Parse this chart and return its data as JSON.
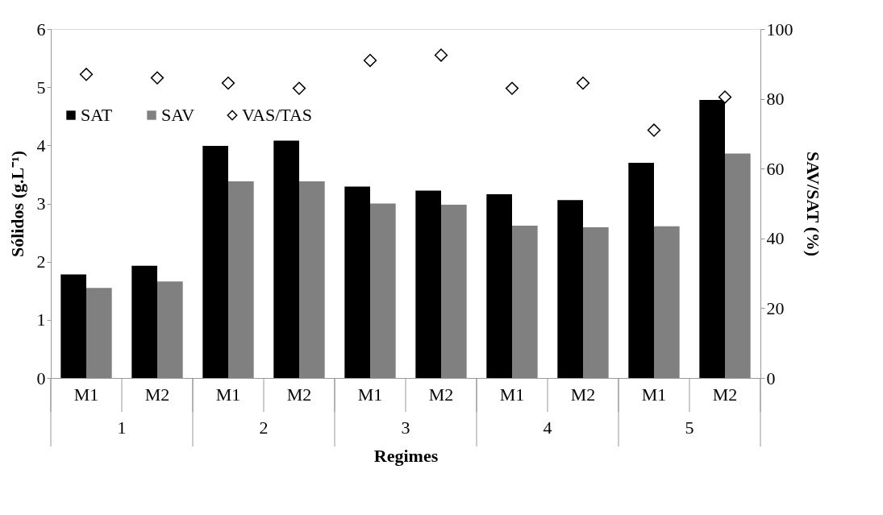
{
  "chart_data": {
    "type": "bar",
    "xlabel": "Regimes",
    "ylabel": "Sólidos (g.L⁻¹)",
    "y2label": "SAV/SAT (%)",
    "categories": [
      "M1",
      "M2",
      "M1",
      "M2",
      "M1",
      "M2",
      "M1",
      "M2",
      "M1",
      "M2"
    ],
    "annotations": [
      "1",
      "2",
      "3",
      "4",
      "5"
    ],
    "series": [
      {
        "name": "SAT",
        "color": "#000000",
        "values": [
          1.78,
          1.93,
          3.99,
          4.08,
          3.29,
          3.22,
          3.16,
          3.06,
          3.7,
          4.78
        ]
      },
      {
        "name": "SAV",
        "color": "#808080",
        "values": [
          1.55,
          1.66,
          3.38,
          3.38,
          3.0,
          2.98,
          2.62,
          2.59,
          2.61,
          3.86
        ]
      },
      {
        "name": "VAS/TAS",
        "type": "scatter",
        "axis": "y2",
        "color": "#ffffff",
        "values": [
          87,
          86,
          84.5,
          83,
          91,
          92.5,
          83,
          84.5,
          71,
          80.5
        ]
      }
    ],
    "ylim": [
      0,
      6
    ],
    "yticks": [
      0,
      1,
      2,
      3,
      4,
      5,
      6
    ],
    "y2lim": [
      0,
      100
    ],
    "y2ticks": [
      0,
      20,
      40,
      60,
      80,
      100
    ],
    "marker": "diamond",
    "grid": false,
    "legend": "top left"
  }
}
